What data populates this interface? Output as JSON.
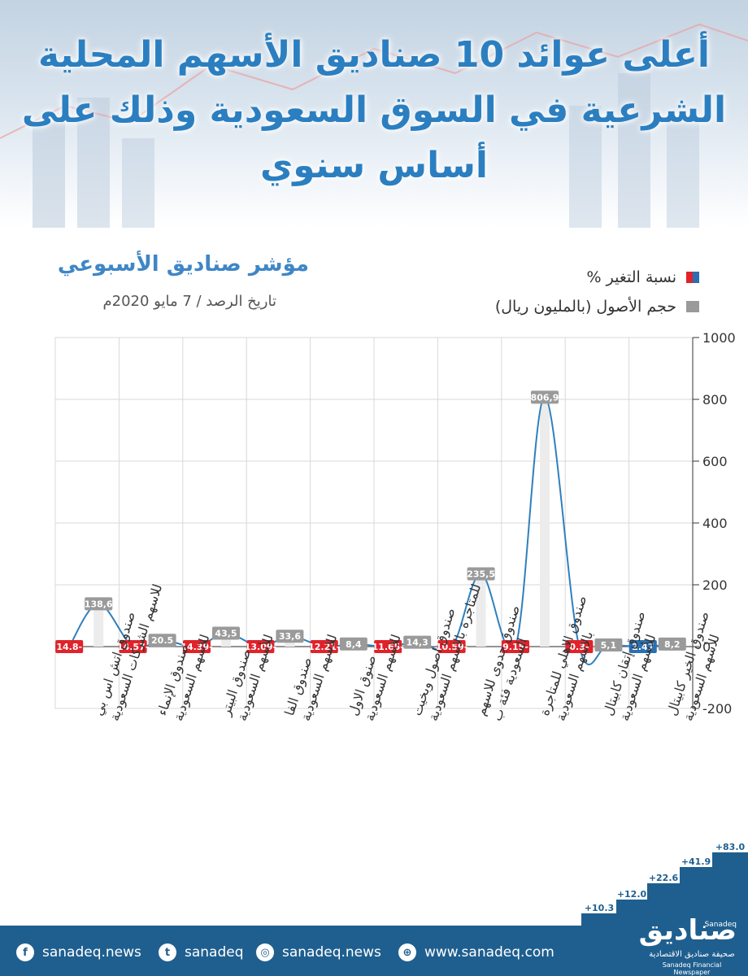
{
  "header": {
    "title": "أعلى عوائد 10 صناديق الأسهم المحلية الشرعية في السوق السعودية وذلك على أساس سنوي"
  },
  "chart_data": {
    "type": "line",
    "title": "مؤشر صناديق الأسبوعي",
    "subtitle": "تاريخ الرصد / 7 مايو 2020م",
    "categories": [
      "صندوق اتش اس بي للاسهم الشركات السعودية",
      "صندوق الإنماء للاسهم السعودية",
      "صندوق البيتر للأسهم السعودية",
      "صندوق الفا للاسهم السعودية",
      "صنوق الاول للاسهم السعودية",
      "صندوق اصول وبخيت للمتاجرة بالاسهم السعودية",
      "صندوق جدوى للاسهم السعودية فئة ب",
      "صندوق الاهلي للمتاجرة بالاسهم السعودية",
      "صندوق إتقان كابيتال للأسهم السعودية",
      "صندوق الخير كابيتال للأسهم السعودية"
    ],
    "series": [
      {
        "name": "نسبة التغير %",
        "values": [
          -14.8,
          -14.57,
          -14.39,
          -13.09,
          -12.21,
          -11.65,
          -10.59,
          -9.15,
          -0.3,
          2.47
        ],
        "labels": [
          "14.8-",
          "14.57-",
          "14.39-",
          "13.09-",
          "12.21-",
          "11.65-",
          "10.59-",
          "9.15-",
          "0.3-",
          "2.47"
        ]
      },
      {
        "name": "حجم الأصول (بالمليون ريال)",
        "values": [
          138.6,
          20.5,
          43.5,
          33.6,
          8.4,
          14.3,
          235.5,
          806.9,
          5.1,
          8.2
        ],
        "labels": [
          "138,6",
          "20.5",
          "43,5",
          "33,6",
          "8,4",
          "14,3",
          "235,5",
          "806,9",
          "5,1",
          "8,2"
        ]
      }
    ],
    "ylim": [
      -200,
      1000
    ],
    "yticks": [
      "1000",
      "800",
      "600",
      "400",
      "200",
      "0",
      "-200"
    ],
    "ytick_values": [
      1000,
      800,
      600,
      400,
      200,
      0,
      -200
    ],
    "grid": true,
    "legend": "top-right",
    "colors": {
      "negative": "#e0232b",
      "positive": "#2b6fb0",
      "assets": "#9a9a9a",
      "line": "#2f80bd",
      "grid": "#d8d8d8"
    }
  },
  "deco": {
    "steps": [
      "+10.3",
      "+12.0",
      "+22.6",
      "+41.9",
      "+83.0"
    ]
  },
  "footer": {
    "facebook": "sanadeq.news",
    "twitter": "sanadeq",
    "instagram": "sanadeq.news",
    "website": "www.sanadeq.com",
    "logo_ar": "صناديق",
    "logo_en": "Sanadeq",
    "logo_sub_ar": "صحيفة صناديق الاقتصادية",
    "logo_sub_en": "Sanadeq Financial Newspaper",
    "icons": [
      "facebook-icon",
      "twitter-icon",
      "instagram-icon",
      "globe-icon"
    ]
  }
}
